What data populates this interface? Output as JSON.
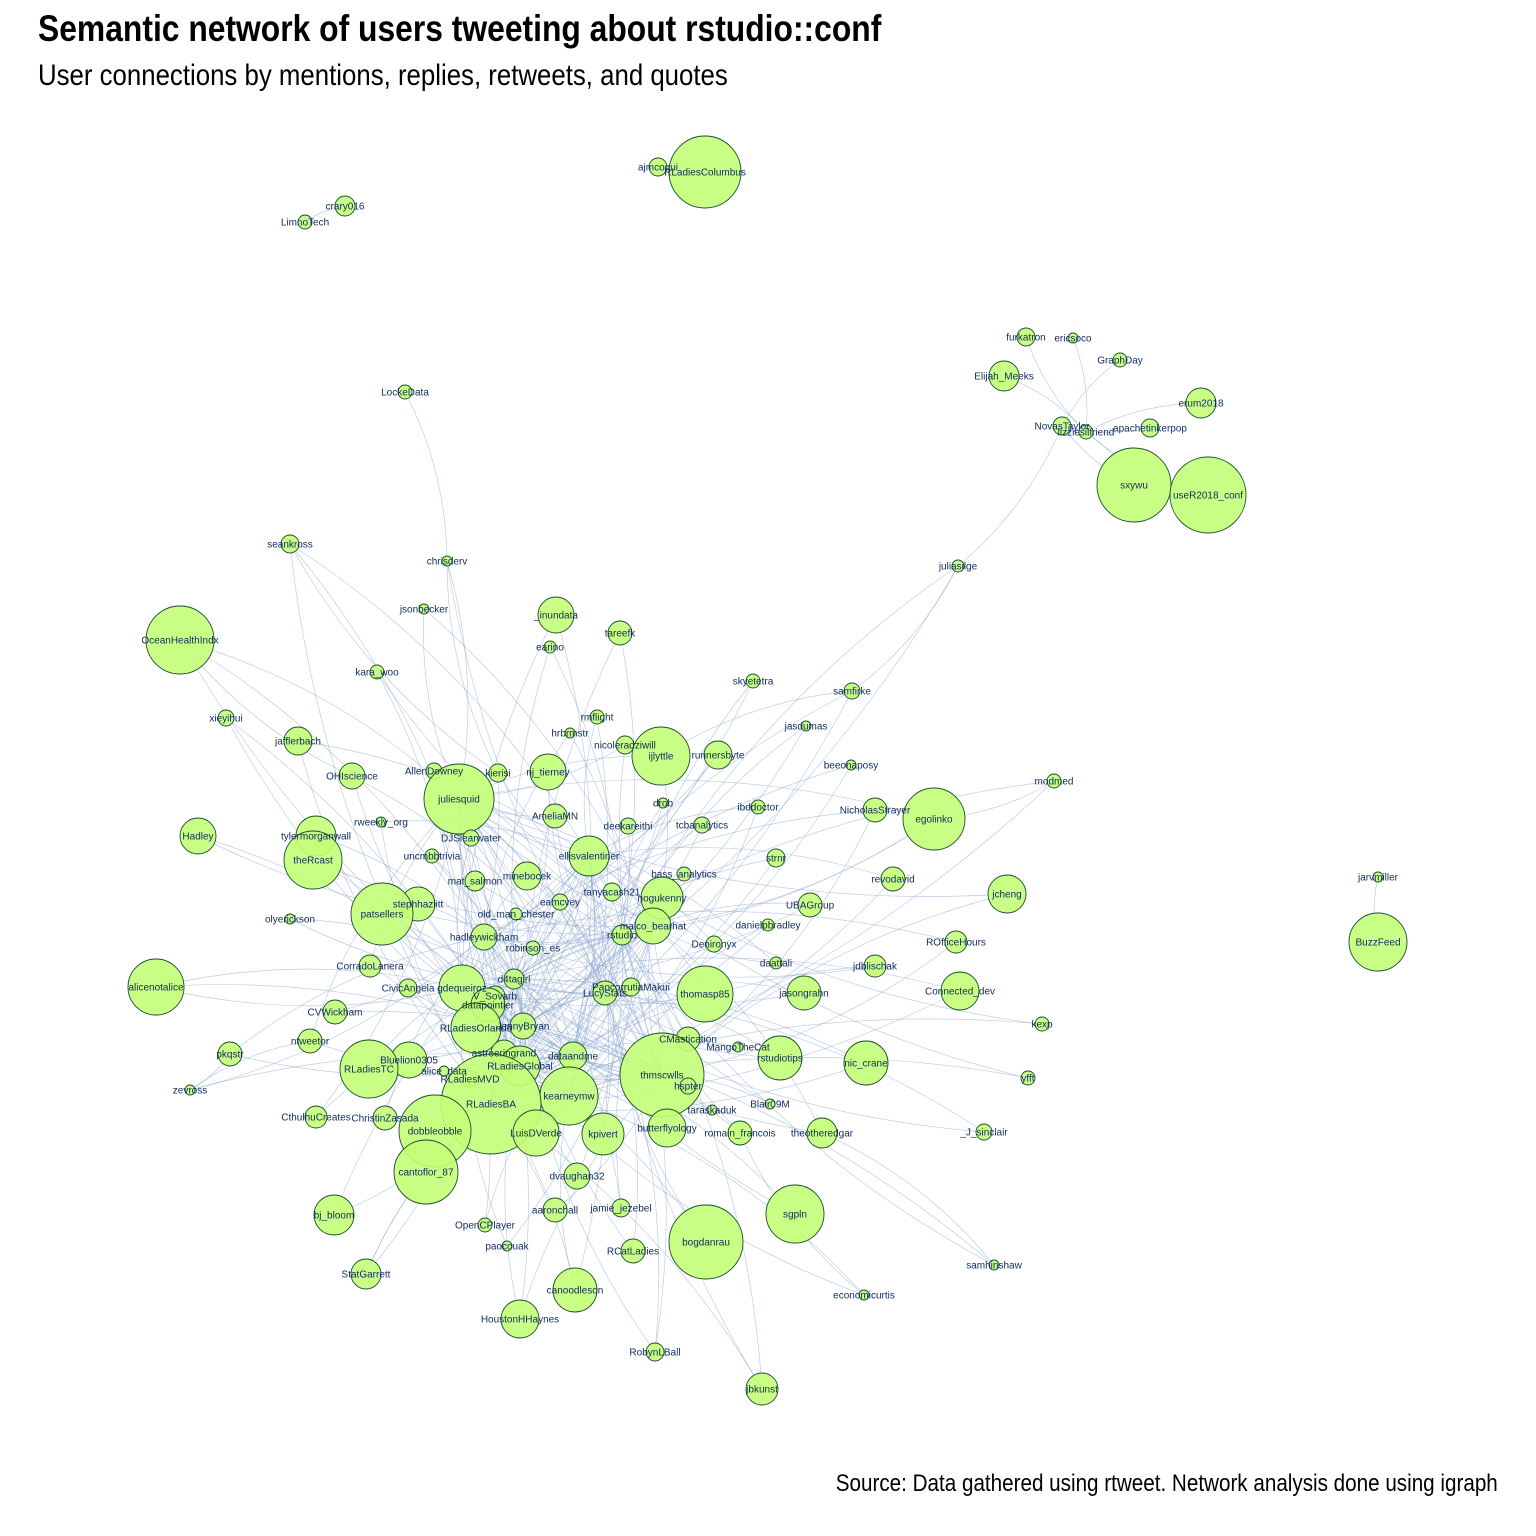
{
  "title": "Semantic network of users tweeting about rstudio::conf",
  "subtitle": "User connections by mentions, replies, retweets, and quotes",
  "caption": "Source: Data gathered using rtweet. Network analysis done using igraph",
  "colors": {
    "node_fill": "#c4ff78",
    "node_stroke": "#1a4d2e",
    "edge": "#8aa6cf",
    "label": "#0d2b5e"
  },
  "nodes": [
    {
      "id": "RLadiesColumbus",
      "label": "RLadiesColumbus"
    },
    {
      "id": "ajmcoqui",
      "label": "ajmcoqui"
    },
    {
      "id": "crary016",
      "label": "crary016"
    },
    {
      "id": "LimnoTech",
      "label": "LimnoTech"
    },
    {
      "id": "furkatron",
      "label": "furkatron"
    },
    {
      "id": "ericsoco",
      "label": "ericsoco"
    },
    {
      "id": "GraphDay",
      "label": "GraphDay"
    },
    {
      "id": "Elijah_Meeks",
      "label": "Elijah_Meeks"
    },
    {
      "id": "erum2018",
      "label": "erum2018"
    },
    {
      "id": "NovasTaylor",
      "label": "NovasTaylor"
    },
    {
      "id": "lizziesilfriend",
      "label": "lizziesilfriend"
    },
    {
      "id": "apachetinkerpop",
      "label": "apachetinkerpop"
    },
    {
      "id": "sxywu",
      "label": "sxywu"
    },
    {
      "id": "useR2018_conf",
      "label": "useR2018_conf"
    },
    {
      "id": "LockeData",
      "label": "LockeData"
    },
    {
      "id": "juliasilge",
      "label": "juliasilge"
    },
    {
      "id": "seankross",
      "label": "seankross"
    },
    {
      "id": "chrisderv",
      "label": "chrisderv"
    },
    {
      "id": "jsonbecker",
      "label": "jsonbecker"
    },
    {
      "id": "OceanHealthIndx",
      "label": "OceanHealthIndx"
    },
    {
      "id": "_inundata",
      "label": "_inundata"
    },
    {
      "id": "tareefk",
      "label": "tareefk"
    },
    {
      "id": "earino",
      "label": "earino"
    },
    {
      "id": "kara_woo",
      "label": "kara_woo"
    },
    {
      "id": "skyetetra",
      "label": "skyetetra"
    },
    {
      "id": "samfirke",
      "label": "samfirke"
    },
    {
      "id": "xieyihui",
      "label": "xieyihui"
    },
    {
      "id": "rmflight",
      "label": "rmflight"
    },
    {
      "id": "hrbrmstr",
      "label": "hrbrmstr"
    },
    {
      "id": "jasdumas",
      "label": "jasdumas"
    },
    {
      "id": "jafflerbach",
      "label": "jafflerbach"
    },
    {
      "id": "nicoleradziwill",
      "label": "nicoleradziwill"
    },
    {
      "id": "ijlyttle",
      "label": "ijlyttle"
    },
    {
      "id": "runnersbyte",
      "label": "runnersbyte"
    },
    {
      "id": "beeonaposy",
      "label": "beeonaposy"
    },
    {
      "id": "OHIscience",
      "label": "OHIscience"
    },
    {
      "id": "AllenDowney",
      "label": "AllenDowney"
    },
    {
      "id": "kierisi",
      "label": "kierisi"
    },
    {
      "id": "nj_tierney",
      "label": "nj_tierney"
    },
    {
      "id": "modmed",
      "label": "modmed"
    },
    {
      "id": "juliesquid",
      "label": "juliesquid"
    },
    {
      "id": "drob",
      "label": "drob"
    },
    {
      "id": "ibddoctor",
      "label": "ibddoctor"
    },
    {
      "id": "NicholasStrayer",
      "label": "NicholasStrayer"
    },
    {
      "id": "Hadley",
      "label": "Hadley"
    },
    {
      "id": "rweekly_org",
      "label": "rweekly_org"
    },
    {
      "id": "AmeliaMN",
      "label": "AmeliaMN"
    },
    {
      "id": "egolinko",
      "label": "egolinko"
    },
    {
      "id": "tylermorganwall",
      "label": "tylermorganwall"
    },
    {
      "id": "DJSlearwater",
      "label": "DJSlearwater"
    },
    {
      "id": "deekareithi",
      "label": "deekareithi"
    },
    {
      "id": "tcbanalytics",
      "label": "tcbanalytics"
    },
    {
      "id": "theRcast",
      "label": "theRcast"
    },
    {
      "id": "uncmbbtrivia",
      "label": "uncmbbtrivia"
    },
    {
      "id": "ellisvalentiner",
      "label": "ellisvalentiner"
    },
    {
      "id": "strnr",
      "label": "strnr"
    },
    {
      "id": "bass_analytics",
      "label": "bass_analytics"
    },
    {
      "id": "revodavid",
      "label": "revodavid"
    },
    {
      "id": "minebocek",
      "label": "minebocek"
    },
    {
      "id": "mat_salmon",
      "label": "mat_salmon"
    },
    {
      "id": "tanyacash21",
      "label": "tanyacash21"
    },
    {
      "id": "jcheng",
      "label": "jcheng"
    },
    {
      "id": "jarvmiller",
      "label": "jarvmiller"
    },
    {
      "id": "stephhazlitt",
      "label": "stephhazlitt"
    },
    {
      "id": "patsellers",
      "label": "patsellers"
    },
    {
      "id": "eamcvey",
      "label": "eamcvey"
    },
    {
      "id": "nogukenny",
      "label": "nogukenny"
    },
    {
      "id": "UBAGroup",
      "label": "UBAGroup"
    },
    {
      "id": "olyerickson",
      "label": "olyerickson"
    },
    {
      "id": "old_man_chester",
      "label": "old_man_chester"
    },
    {
      "id": "danielpbradley",
      "label": "danielpbradley"
    },
    {
      "id": "malco_bearhat",
      "label": "malco_bearhat"
    },
    {
      "id": "hadleywickham",
      "label": "hadleywickham"
    },
    {
      "id": "rstudio",
      "label": "rstudio"
    },
    {
      "id": "Denironyx",
      "label": "Denironyx"
    },
    {
      "id": "ROfficeHours",
      "label": "ROfficeHours"
    },
    {
      "id": "BuzzFeed",
      "label": "BuzzFeed"
    },
    {
      "id": "robinson_es",
      "label": "robinson_es"
    },
    {
      "id": "CorradoLanera",
      "label": "CorradoLanera"
    },
    {
      "id": "daattali",
      "label": "daattali"
    },
    {
      "id": "jdblischak",
      "label": "jdblischak"
    },
    {
      "id": "alicenotalice",
      "label": "alicenotalice"
    },
    {
      "id": "d4tagirl",
      "label": "d4tagirl"
    },
    {
      "id": "CivicAngela",
      "label": "CivicAngela"
    },
    {
      "id": "gdequeiroz",
      "label": "gdequeiroz"
    },
    {
      "id": "PaocorrutiaMakui",
      "label": "PaocorrutiaMakui"
    },
    {
      "id": "LucyStats",
      "label": "LucyStats"
    },
    {
      "id": "thomasp85",
      "label": "thomasp85"
    },
    {
      "id": "jasongrahn",
      "label": "jasongrahn"
    },
    {
      "id": "Connected_dev",
      "label": "Connected_dev"
    },
    {
      "id": "V_Sovarb",
      "label": "V_Sovarb"
    },
    {
      "id": "datapointier",
      "label": "datapointier"
    },
    {
      "id": "CVWickham",
      "label": "CVWickham"
    },
    {
      "id": "RLadiesOrlando",
      "label": "RLadiesOrlando"
    },
    {
      "id": "JennyBryan",
      "label": "JennyBryan"
    },
    {
      "id": "kexp",
      "label": "kexp"
    },
    {
      "id": "ntweetor",
      "label": "ntweetor"
    },
    {
      "id": "CMastication",
      "label": "CMastication"
    },
    {
      "id": "pkqstr",
      "label": "pkqstr"
    },
    {
      "id": "astroeringrand",
      "label": "astroeringrand"
    },
    {
      "id": "MangoTheCat",
      "label": "MangoTheCat"
    },
    {
      "id": "dataandme",
      "label": "dataandme"
    },
    {
      "id": "Bluelion0305",
      "label": "Bluelion0305"
    },
    {
      "id": "RLadiesTC",
      "label": "RLadiesTC"
    },
    {
      "id": "RLadiesGlobal",
      "label": "RLadiesGlobal"
    },
    {
      "id": "rstudiotips",
      "label": "rstudiotips"
    },
    {
      "id": "nic_crane",
      "label": "nic_crane"
    },
    {
      "id": "alice_data",
      "label": "alice_data"
    },
    {
      "id": "thmscwlls",
      "label": "thmscwlls"
    },
    {
      "id": "RLadiesMVD",
      "label": "RLadiesMVD"
    },
    {
      "id": "zevross",
      "label": "zevross"
    },
    {
      "id": "hspter",
      "label": "hspter"
    },
    {
      "id": "yfft",
      "label": "yfft"
    },
    {
      "id": "kearneymw",
      "label": "kearneymw"
    },
    {
      "id": "RLadiesBA",
      "label": "RLadiesBA"
    },
    {
      "id": "Blair09M",
      "label": "Blair09M"
    },
    {
      "id": "CthulhuCreates",
      "label": "CthulhuCreates"
    },
    {
      "id": "ChristinZasada",
      "label": "ChristinZasada"
    },
    {
      "id": "taraskaduk",
      "label": "taraskaduk"
    },
    {
      "id": "butterflyology",
      "label": "butterflyology"
    },
    {
      "id": "romain_francois",
      "label": "romain_francois"
    },
    {
      "id": "theotheredgar",
      "label": "theotheredgar"
    },
    {
      "id": "_J_sinclair",
      "label": "_J_sinclair"
    },
    {
      "id": "dobbleobble",
      "label": "dobbleobble"
    },
    {
      "id": "LuisDVerde",
      "label": "LuisDVerde"
    },
    {
      "id": "kpivert",
      "label": "kpivert"
    },
    {
      "id": "cantoflor_87",
      "label": "cantoflor_87"
    },
    {
      "id": "dvaughan32",
      "label": "dvaughan32"
    },
    {
      "id": "bj_bloom",
      "label": "bj_bloom"
    },
    {
      "id": "aaronchall",
      "label": "aaronchall"
    },
    {
      "id": "jamie_jezebel",
      "label": "jamie_jezebel"
    },
    {
      "id": "sgpln",
      "label": "sgpln"
    },
    {
      "id": "OpenCPlayer",
      "label": "OpenCPlayer"
    },
    {
      "id": "bogdanrau",
      "label": "bogdanrau"
    },
    {
      "id": "samhinshaw",
      "label": "samhinshaw"
    },
    {
      "id": "paocouak",
      "label": "paocouak"
    },
    {
      "id": "RCatLadies",
      "label": "RCatLadies"
    },
    {
      "id": "StatGarrett",
      "label": "StatGarrett"
    },
    {
      "id": "economicurtis",
      "label": "economicurtis"
    },
    {
      "id": "canoodleson",
      "label": "canoodleson"
    },
    {
      "id": "HoustonHHaynes",
      "label": "HoustonHHaynes"
    },
    {
      "id": "RobynLBall",
      "label": "RobynLBall"
    },
    {
      "id": "jbkunst",
      "label": "jbkunst"
    }
  ]
}
